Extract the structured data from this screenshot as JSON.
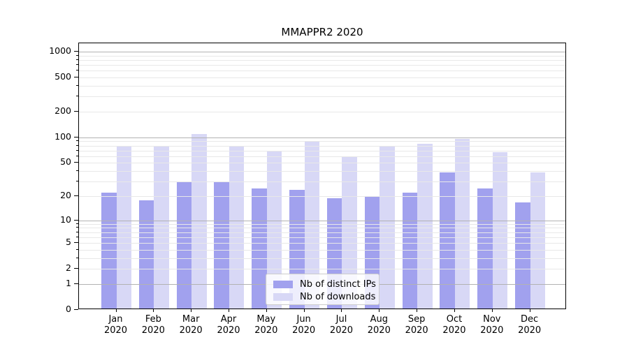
{
  "title": "MMAPPR2 2020",
  "colors": {
    "distinct_ips_bar": "#a1a1ee",
    "downloads_bar": "#d8d8f6",
    "major_gridline": "#b2b2b2",
    "minor_gridline": "#e8e8e8",
    "axis_line": "#000000",
    "legend_border": "#cccccc",
    "background": "#ffffff"
  },
  "legend": {
    "items": [
      {
        "label": "Nb of distinct IPs"
      },
      {
        "label": "Nb of downloads"
      }
    ]
  },
  "y_axis": {
    "tick_labels": [
      "0",
      "1",
      "2",
      "5",
      "10",
      "20",
      "50",
      "100",
      "200",
      "500",
      "1000"
    ],
    "tick_values": [
      0,
      1,
      2,
      5,
      10,
      20,
      50,
      100,
      200,
      500,
      1000
    ],
    "major_grid_values": [
      1,
      10,
      100,
      1000
    ]
  },
  "x_axis": {
    "year": "2020",
    "months": [
      "Jan",
      "Feb",
      "Mar",
      "Apr",
      "May",
      "Jun",
      "Jul",
      "Aug",
      "Sep",
      "Oct",
      "Nov",
      "Dec"
    ]
  },
  "chart_data": {
    "type": "bar",
    "title": "MMAPPR2 2020",
    "categories": [
      "Jan 2020",
      "Feb 2020",
      "Mar 2020",
      "Apr 2020",
      "May 2020",
      "Jun 2020",
      "Jul 2020",
      "Aug 2020",
      "Sep 2020",
      "Oct 2020",
      "Nov 2020",
      "Dec 2020"
    ],
    "series": [
      {
        "name": "Nb of distinct IPs",
        "color": "#a1a1ee",
        "values": [
          21,
          17,
          29,
          29,
          24,
          23,
          18,
          19,
          21,
          37,
          24,
          16
        ]
      },
      {
        "name": "Nb of downloads",
        "color": "#d8d8f6",
        "values": [
          77,
          77,
          106,
          77,
          66,
          85,
          57,
          75,
          81,
          92,
          65,
          37
        ]
      }
    ],
    "xlabel": "",
    "ylabel": "",
    "yscale": "log10(value+1)",
    "ylim": [
      0,
      1250
    ],
    "y_ticks": [
      0,
      1,
      2,
      5,
      10,
      20,
      50,
      100,
      200,
      500,
      1000
    ],
    "grid": "on",
    "legend_position": "lower center"
  }
}
